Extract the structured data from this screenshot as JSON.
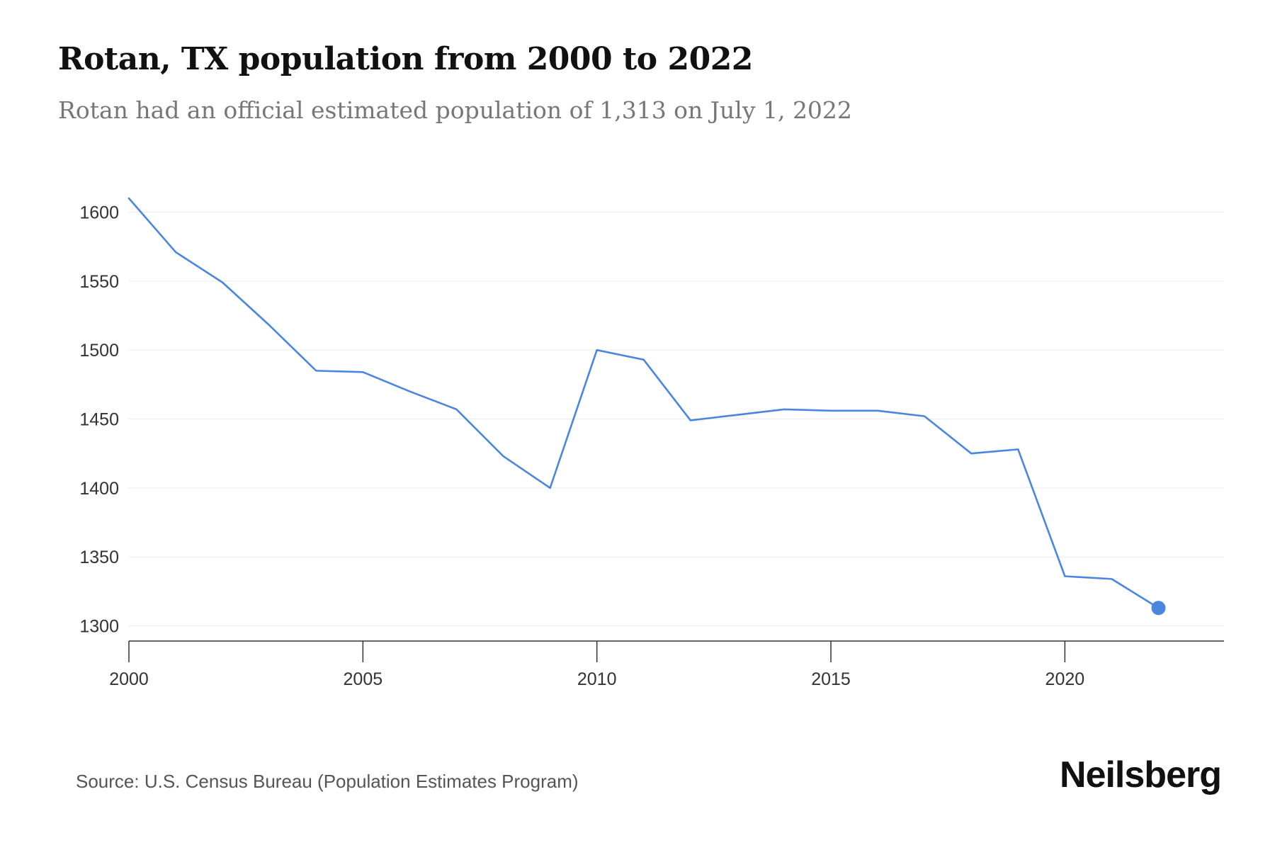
{
  "title": "Rotan, TX population from 2000 to 2022",
  "subtitle": "Rotan had an official estimated population of 1,313 on July 1, 2022",
  "source": "Source: U.S. Census Bureau (Population Estimates Program)",
  "brand": "Neilsberg",
  "colors": {
    "line": "#4a86e0",
    "marker": "#4a86e0",
    "grid": "#ececec",
    "axis": "#333333"
  },
  "chart_data": {
    "type": "line",
    "title": "Rotan, TX population from 2000 to 2022",
    "xlabel": "",
    "ylabel": "",
    "x": [
      2000,
      2001,
      2002,
      2003,
      2004,
      2005,
      2006,
      2007,
      2008,
      2009,
      2010,
      2011,
      2012,
      2013,
      2014,
      2015,
      2016,
      2017,
      2018,
      2019,
      2020,
      2021,
      2022
    ],
    "series": [
      {
        "values": [
          1610,
          1571,
          1549,
          1518,
          1485,
          1484,
          1470,
          1457,
          1423,
          1400,
          1500,
          1493,
          1449,
          1453,
          1457,
          1456,
          1456,
          1452,
          1425,
          1428,
          1336,
          1334,
          1313
        ]
      }
    ],
    "xlim": [
      2000,
      2023.4
    ],
    "ylim": [
      1289,
      1610
    ],
    "x_ticks": [
      "2000",
      "2005",
      "2010",
      "2015",
      "2020"
    ],
    "y_ticks": [
      "1300",
      "1350",
      "1400",
      "1450",
      "1500",
      "1550",
      "1600"
    ],
    "grid": true,
    "highlight_last_point": true
  }
}
